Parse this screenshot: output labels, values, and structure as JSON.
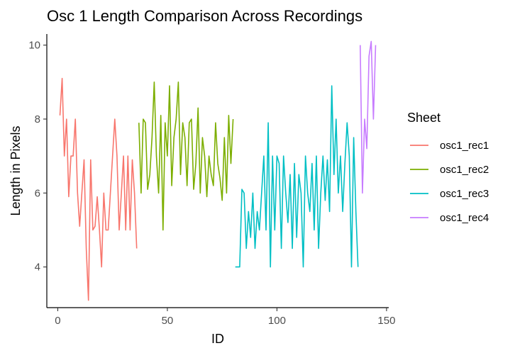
{
  "chart_data": {
    "type": "line",
    "title": "Osc 1 Length Comparison Across Recordings",
    "xlabel": "ID",
    "ylabel": "Length in Pixels",
    "xlim": [
      -5,
      151
    ],
    "ylim": [
      2.9,
      10.3
    ],
    "xticks": [
      0,
      50,
      100,
      150
    ],
    "yticks": [
      4,
      6,
      8,
      10
    ],
    "grid": false,
    "legend": {
      "title": "Sheet",
      "position": "right"
    },
    "series": [
      {
        "name": "osc1_rec1",
        "color": "#F8766D",
        "x": [
          1,
          2,
          3,
          4,
          5,
          6,
          7,
          8,
          9,
          10,
          11,
          12,
          13,
          14,
          15,
          16,
          17,
          18,
          19,
          20,
          21,
          22,
          23,
          24,
          25,
          26,
          27,
          28,
          29,
          30,
          31,
          32,
          33,
          34,
          35,
          36
        ],
        "y": [
          8.1,
          9.1,
          7.0,
          8.0,
          5.9,
          7.0,
          7.0,
          8.0,
          6.0,
          5.1,
          6.0,
          6.9,
          4.5,
          3.1,
          6.9,
          5.0,
          5.1,
          5.9,
          5.0,
          4.0,
          6.0,
          5.0,
          5.0,
          6.0,
          7.0,
          8.0,
          7.0,
          5.0,
          6.0,
          7.0,
          5.0,
          7.0,
          5.0,
          6.9,
          6.0,
          4.5
        ]
      },
      {
        "name": "osc1_rec2",
        "color": "#7CAE00",
        "x": [
          37,
          38,
          39,
          40,
          41,
          42,
          43,
          44,
          45,
          46,
          47,
          48,
          49,
          50,
          51,
          52,
          53,
          54,
          55,
          56,
          57,
          58,
          59,
          60,
          61,
          62,
          63,
          64,
          65,
          66,
          67,
          68,
          69,
          70,
          71,
          72,
          73,
          74,
          75,
          76,
          77,
          78,
          79,
          80
        ],
        "y": [
          7.9,
          6.0,
          8.0,
          7.9,
          6.1,
          6.5,
          7.5,
          9.0,
          7.0,
          6.0,
          8.1,
          5.0,
          7.9,
          7.0,
          8.9,
          6.2,
          7.5,
          8.0,
          9.0,
          6.5,
          7.9,
          7.5,
          6.2,
          7.9,
          8.0,
          6.1,
          6.8,
          8.3,
          6.0,
          7.5,
          7.0,
          5.9,
          7.0,
          6.5,
          6.2,
          7.9,
          6.8,
          6.4,
          5.8,
          7.5,
          6.0,
          8.1,
          6.8,
          8.0
        ]
      },
      {
        "name": "osc1_rec3",
        "color": "#00BFC4",
        "x": [
          81,
          82,
          83,
          84,
          85,
          86,
          87,
          88,
          89,
          90,
          91,
          92,
          93,
          94,
          95,
          96,
          97,
          98,
          99,
          100,
          101,
          102,
          103,
          104,
          105,
          106,
          107,
          108,
          109,
          110,
          111,
          112,
          113,
          114,
          115,
          116,
          117,
          118,
          119,
          120,
          121,
          122,
          123,
          124,
          125,
          126,
          127,
          128,
          129,
          130,
          131,
          132,
          133,
          134,
          135,
          136,
          137
        ],
        "y": [
          4.0,
          4.0,
          4.0,
          6.1,
          6.0,
          4.5,
          5.5,
          4.8,
          6.0,
          4.5,
          5.5,
          5.0,
          6.0,
          7.0,
          5.0,
          7.9,
          4.0,
          7.0,
          5.0,
          7.0,
          6.8,
          4.5,
          7.0,
          6.0,
          5.2,
          6.5,
          4.5,
          6.8,
          4.8,
          6.5,
          6.0,
          4.0,
          7.0,
          6.0,
          5.5,
          6.8,
          5.0,
          7.0,
          4.5,
          6.0,
          7.0,
          5.8,
          6.9,
          5.5,
          8.9,
          6.5,
          8.0,
          6.0,
          7.0,
          5.5,
          6.8,
          7.9,
          7.0,
          4.0,
          7.5,
          5.5,
          4.0
        ]
      },
      {
        "name": "osc1_rec4",
        "color": "#C77CFF",
        "x": [
          138,
          139,
          140,
          141,
          142,
          143,
          144,
          145
        ],
        "y": [
          10.0,
          6.0,
          8.0,
          7.2,
          9.7,
          10.1,
          8.0,
          10.0
        ]
      }
    ]
  }
}
